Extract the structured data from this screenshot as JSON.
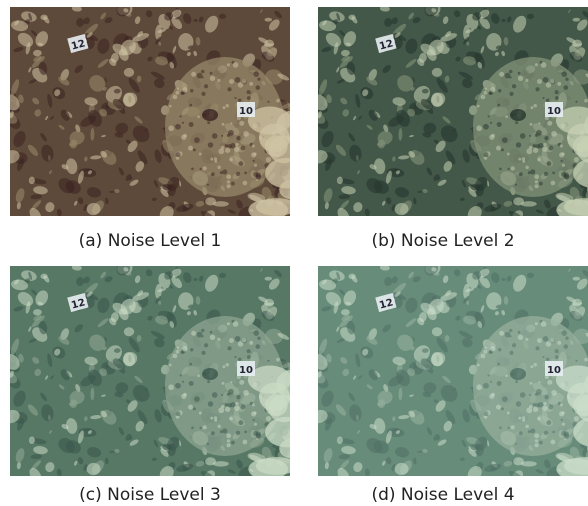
{
  "panels": [
    {
      "caption": "(a) Noise Level 1",
      "tags": [
        "12",
        "10"
      ]
    },
    {
      "caption": "(b) Noise Level 2",
      "tags": [
        "12",
        "10"
      ]
    },
    {
      "caption": "(c) Noise Level 3",
      "tags": [
        "12",
        "10"
      ]
    },
    {
      "caption": "(d) Noise Level 4",
      "tags": [
        "12",
        "10"
      ]
    }
  ]
}
